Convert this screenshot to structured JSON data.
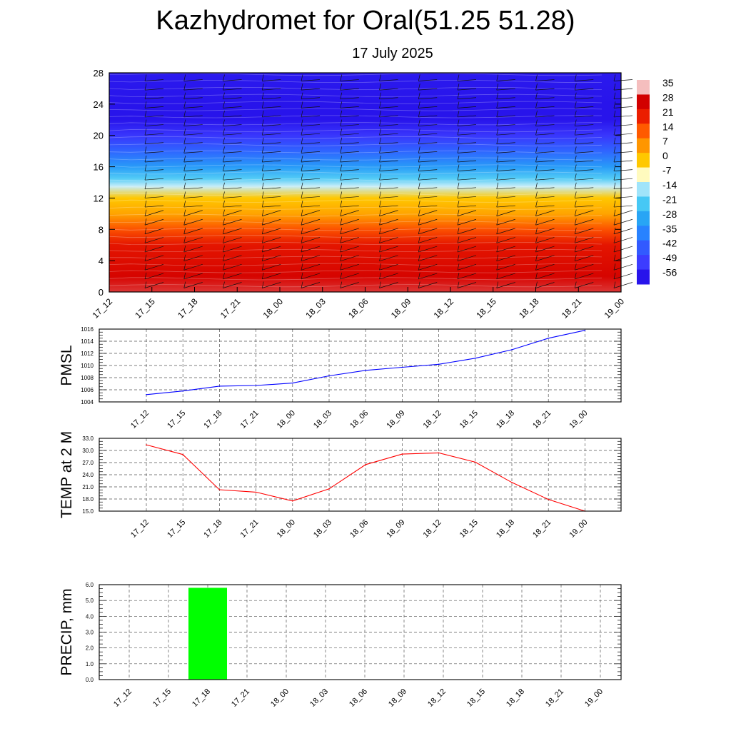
{
  "title": "Kazhydromet for Oral(51.25 51.28)",
  "subtitle": "17 July 2025",
  "time_labels": [
    "17_12",
    "17_15",
    "17_18",
    "17_21",
    "18_00",
    "18_03",
    "18_06",
    "18_09",
    "18_12",
    "18_15",
    "18_18",
    "18_21",
    "19_00"
  ],
  "chart_data": [
    {
      "type": "heatmap",
      "name": "cross-section",
      "y_ticks": [
        0,
        4,
        8,
        12,
        16,
        20,
        24,
        28
      ],
      "ylim": [
        0,
        28
      ],
      "colorbar": {
        "labels": [
          "35",
          "28",
          "21",
          "14",
          "7",
          "0",
          "-7",
          "-14",
          "-21",
          "-28",
          "-35",
          "-42",
          "-49",
          "-56"
        ],
        "min": -63,
        "max": 35
      },
      "levels": [
        {
          "level": 0,
          "value": 30
        },
        {
          "level": 2,
          "value": 27
        },
        {
          "level": 4,
          "value": 25
        },
        {
          "level": 6,
          "value": 23
        },
        {
          "level": 8,
          "value": 15
        },
        {
          "level": 10,
          "value": 5
        },
        {
          "level": 12,
          "value": 0
        },
        {
          "level": 13.5,
          "value": -12
        },
        {
          "level": 14.5,
          "value": -20
        },
        {
          "level": 16,
          "value": -30
        },
        {
          "level": 18,
          "value": -40
        },
        {
          "level": 20,
          "value": -50
        },
        {
          "level": 22,
          "value": -56
        },
        {
          "level": 24,
          "value": -56
        },
        {
          "level": 28,
          "value": -55
        }
      ]
    },
    {
      "type": "line",
      "name": "pmsl",
      "ylabel": "PMSL",
      "y_ticks": [
        "1004",
        "1006",
        "1008",
        "1010",
        "1012",
        "1014",
        "1016"
      ],
      "ylim": [
        1004,
        1016
      ],
      "color": "#0000ff",
      "values": [
        1005.2,
        1005.8,
        1006.6,
        1006.7,
        1007.1,
        1008.3,
        1009.2,
        1009.7,
        1010.2,
        1011.2,
        1012.6,
        1014.5,
        1015.8
      ]
    },
    {
      "type": "line",
      "name": "temp",
      "ylabel": "TEMP at 2 M",
      "y_ticks": [
        "15.0",
        "18.0",
        "21.0",
        "24.0",
        "27.0",
        "30.0",
        "33.0"
      ],
      "ylim": [
        15,
        33
      ],
      "color": "#ff0000",
      "values": [
        31.4,
        29.0,
        20.3,
        19.7,
        17.5,
        20.5,
        26.5,
        29.1,
        29.4,
        27.1,
        22.1,
        17.9,
        15.0
      ]
    },
    {
      "type": "bar",
      "name": "precip",
      "ylabel": "PRECIP, mm",
      "y_ticks": [
        "0.0",
        "1.0",
        "2.0",
        "3.0",
        "4.0",
        "5.0",
        "6.0"
      ],
      "ylim": [
        0,
        6
      ],
      "color": "#00ff00",
      "values": [
        0,
        0,
        5.8,
        0,
        0,
        0,
        0,
        0,
        0,
        0,
        0,
        0,
        0
      ]
    }
  ]
}
